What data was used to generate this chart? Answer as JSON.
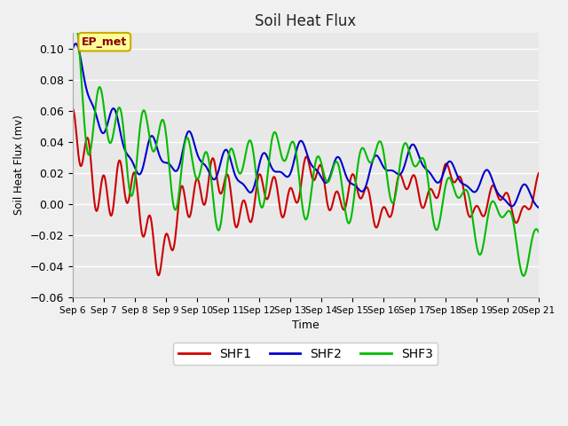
{
  "title": "Soil Heat Flux",
  "xlabel": "Time",
  "ylabel": "Soil Heat Flux (mv)",
  "ylim": [
    -0.06,
    0.11
  ],
  "yticks": [
    -0.06,
    -0.04,
    -0.02,
    0.0,
    0.02,
    0.04,
    0.06,
    0.08,
    0.1
  ],
  "xtick_labels": [
    "Sep 6",
    "Sep 7",
    "Sep 8",
    "Sep 9",
    "Sep 10",
    "Sep 11",
    "Sep 12",
    "Sep 13",
    "Sep 14",
    "Sep 15",
    "Sep 16",
    "Sep 17",
    "Sep 18",
    "Sep 19",
    "Sep 20",
    "Sep 21"
  ],
  "bg_color": "#e8e8e8",
  "fig_color": "#f0f0f0",
  "line_colors": {
    "SHF1": "#cc0000",
    "SHF2": "#0000cc",
    "SHF3": "#00bb00"
  },
  "line_width": 1.5,
  "annotation_text": "EP_met",
  "annotation_bg": "#ffff99",
  "annotation_border": "#ccaa00"
}
